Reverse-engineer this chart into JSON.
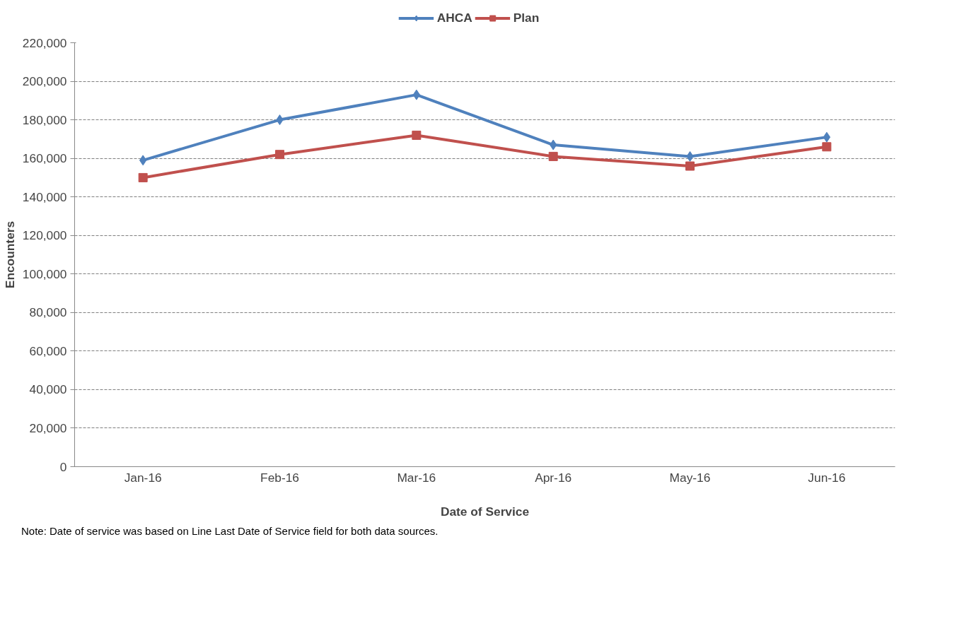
{
  "chart_data": {
    "type": "line",
    "xlabel": "Date of Service",
    "ylabel": "Encounters",
    "categories": [
      "Jan-16",
      "Feb-16",
      "Mar-16",
      "Apr-16",
      "May-16",
      "Jun-16"
    ],
    "series": [
      {
        "name": "AHCA",
        "color": "#4f81bd",
        "marker": "diamond",
        "values": [
          159000,
          180000,
          193000,
          167000,
          161000,
          171000
        ]
      },
      {
        "name": "Plan",
        "color": "#c0504d",
        "marker": "square",
        "values": [
          150000,
          162000,
          172000,
          161000,
          156000,
          166000
        ]
      }
    ],
    "ylim": [
      0,
      220000
    ],
    "yticks": [
      {
        "value": 0,
        "label": "0"
      },
      {
        "value": 20000,
        "label": "20,000"
      },
      {
        "value": 40000,
        "label": "40,000"
      },
      {
        "value": 60000,
        "label": "60,000"
      },
      {
        "value": 80000,
        "label": "80,000"
      },
      {
        "value": 100000,
        "label": "100,000"
      },
      {
        "value": 120000,
        "label": "120,000"
      },
      {
        "value": 140000,
        "label": "140,000"
      },
      {
        "value": 160000,
        "label": "160,000"
      },
      {
        "value": 180000,
        "label": "180,000"
      },
      {
        "value": 200000,
        "label": "200,000"
      },
      {
        "value": 220000,
        "label": "220,000"
      }
    ],
    "grid": "y",
    "legend": "top",
    "line_style": "solid",
    "annotations": [
      "Note: Date of service was based on Line Last Date of Service field for both data sources."
    ]
  }
}
